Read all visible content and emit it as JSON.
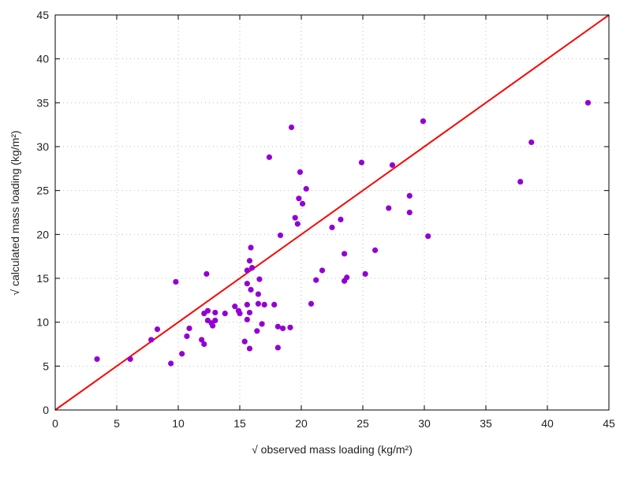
{
  "chart_data": {
    "type": "scatter",
    "title": "",
    "xlabel": "√ observed mass loading (kg/m²)",
    "ylabel": "√ calculated mass loading (kg/m²)",
    "xlim": [
      0,
      45
    ],
    "ylim": [
      0,
      45
    ],
    "xticks": [
      0,
      5,
      10,
      15,
      20,
      25,
      30,
      35,
      40,
      45
    ],
    "yticks": [
      0,
      5,
      10,
      15,
      20,
      25,
      30,
      35,
      40,
      45
    ],
    "grid": true,
    "point_color": "#9400d3",
    "line_color": "#ff0000",
    "reference_line": {
      "type": "1:1",
      "from": [
        0,
        0
      ],
      "to": [
        45,
        45
      ]
    },
    "points": [
      [
        3.4,
        5.8
      ],
      [
        6.1,
        5.8
      ],
      [
        7.8,
        8.0
      ],
      [
        8.3,
        9.2
      ],
      [
        9.4,
        5.3
      ],
      [
        9.8,
        14.6
      ],
      [
        10.3,
        6.4
      ],
      [
        10.7,
        8.4
      ],
      [
        10.9,
        9.3
      ],
      [
        11.9,
        8.0
      ],
      [
        12.1,
        7.5
      ],
      [
        12.1,
        11.0
      ],
      [
        12.3,
        15.5
      ],
      [
        12.4,
        11.3
      ],
      [
        12.4,
        10.2
      ],
      [
        12.7,
        9.9
      ],
      [
        12.8,
        9.6
      ],
      [
        13.0,
        11.1
      ],
      [
        13.0,
        10.2
      ],
      [
        13.8,
        11.0
      ],
      [
        14.6,
        11.8
      ],
      [
        14.9,
        11.3
      ],
      [
        15.0,
        11.0
      ],
      [
        15.4,
        7.8
      ],
      [
        15.6,
        12.0
      ],
      [
        15.6,
        10.3
      ],
      [
        15.6,
        14.4
      ],
      [
        15.6,
        15.9
      ],
      [
        15.8,
        7.0
      ],
      [
        15.8,
        11.1
      ],
      [
        15.8,
        17.0
      ],
      [
        15.9,
        13.7
      ],
      [
        15.9,
        18.5
      ],
      [
        16.0,
        16.2
      ],
      [
        16.4,
        9.0
      ],
      [
        16.5,
        12.1
      ],
      [
        16.5,
        13.2
      ],
      [
        16.6,
        14.9
      ],
      [
        16.8,
        9.8
      ],
      [
        17.0,
        12.0
      ],
      [
        17.4,
        28.8
      ],
      [
        17.8,
        12.0
      ],
      [
        18.1,
        7.1
      ],
      [
        18.1,
        9.5
      ],
      [
        18.3,
        19.9
      ],
      [
        18.5,
        9.3
      ],
      [
        19.1,
        9.4
      ],
      [
        19.2,
        32.2
      ],
      [
        19.5,
        21.9
      ],
      [
        19.7,
        21.2
      ],
      [
        19.8,
        24.1
      ],
      [
        19.9,
        27.1
      ],
      [
        20.1,
        23.5
      ],
      [
        20.4,
        25.2
      ],
      [
        20.8,
        12.1
      ],
      [
        21.2,
        14.8
      ],
      [
        21.7,
        15.9
      ],
      [
        22.5,
        20.8
      ],
      [
        23.2,
        21.7
      ],
      [
        23.5,
        17.8
      ],
      [
        23.5,
        14.7
      ],
      [
        23.7,
        15.1
      ],
      [
        24.9,
        28.2
      ],
      [
        25.2,
        15.5
      ],
      [
        26.0,
        18.2
      ],
      [
        27.1,
        23.0
      ],
      [
        27.4,
        27.9
      ],
      [
        28.8,
        24.4
      ],
      [
        28.8,
        22.5
      ],
      [
        29.9,
        32.9
      ],
      [
        30.3,
        19.8
      ],
      [
        37.8,
        26.0
      ],
      [
        38.7,
        30.5
      ],
      [
        43.3,
        35.0
      ]
    ]
  }
}
